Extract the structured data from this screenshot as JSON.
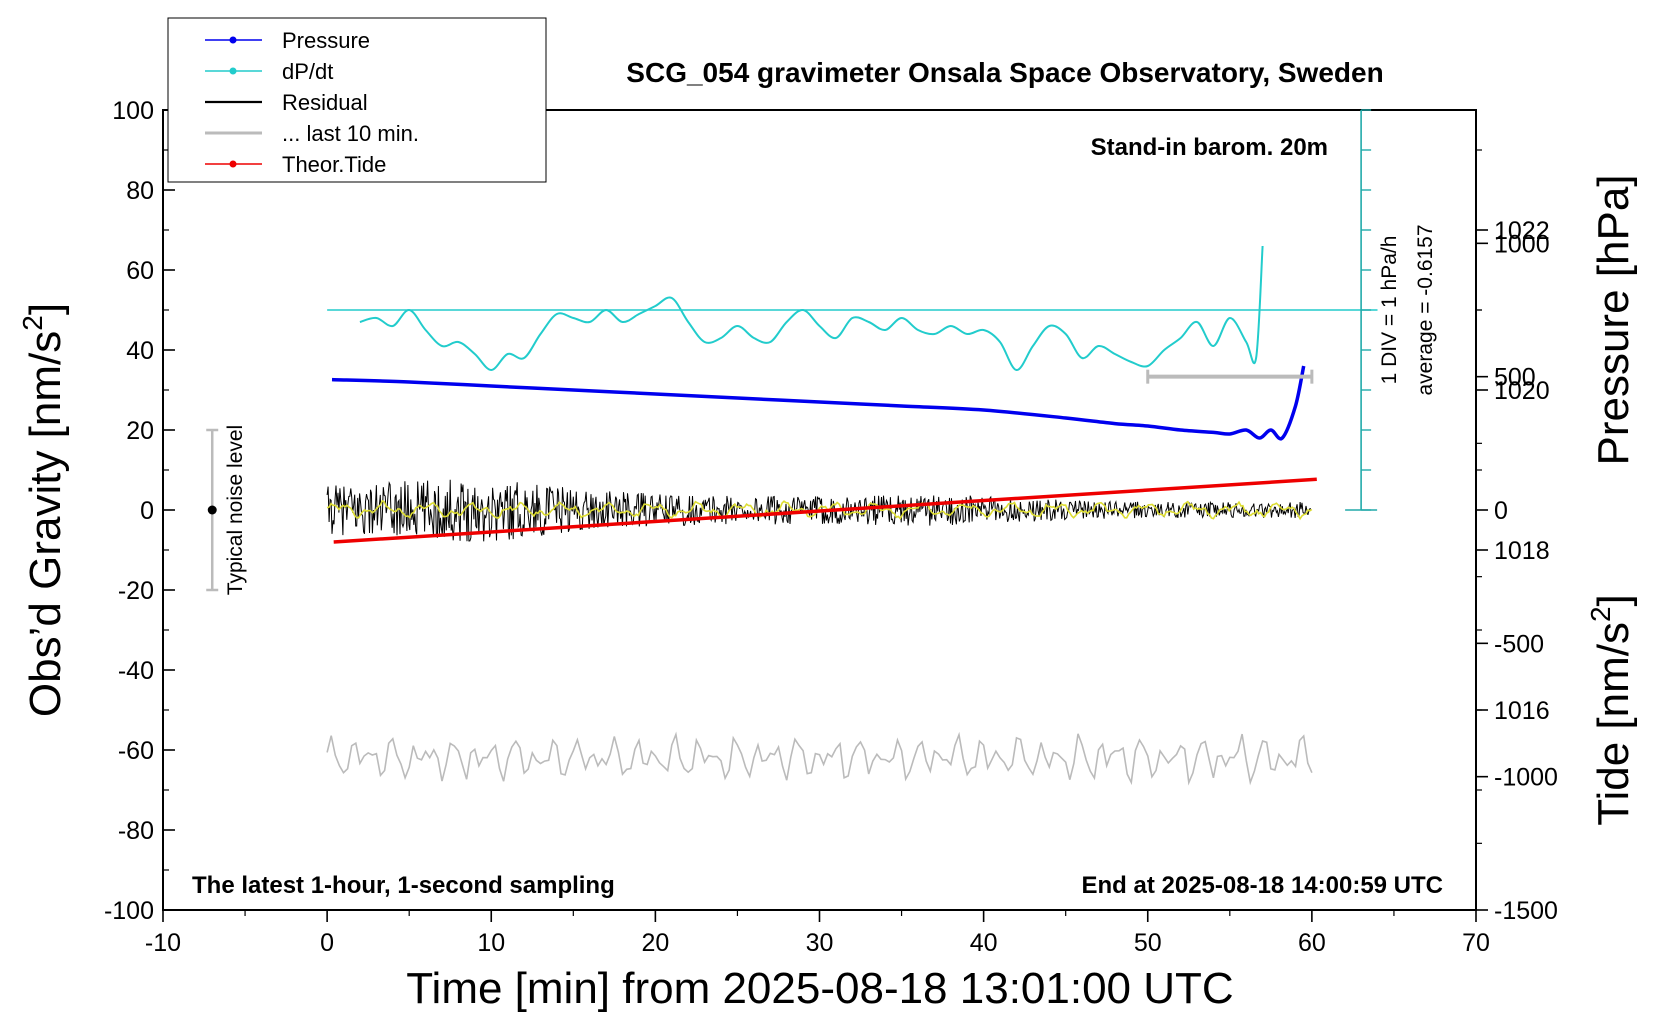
{
  "chart_data": {
    "type": "line",
    "title": "SCG_054 gravimeter Onsala Space Observatory, Sweden",
    "xlabel": "Time [min] from 2025-08-18 13:01:00 UTC",
    "ylabel_left": "Obs’d Gravity [nm/s",
    "ylabel_left_sup": "2",
    "ylabel_left_end": "]",
    "ylabel_right_pressure": "Pressure [hPa]",
    "ylabel_right_tide": "Tide [nm/s",
    "ylabel_right_tide_sup": "2",
    "ylabel_right_tide_end": "]",
    "xlim": [
      -10,
      70
    ],
    "ylim_left": [
      -100,
      100
    ],
    "x_ticks": [
      "-10",
      "0",
      "10",
      "20",
      "30",
      "40",
      "50",
      "60",
      "70"
    ],
    "y_ticks_left": [
      "100",
      "80",
      "60",
      "40",
      "20",
      "0",
      "-20",
      "-40",
      "-60",
      "-80",
      "-100"
    ],
    "pressure_axis": {
      "ylim": [
        1013.5,
        1023.5
      ],
      "ticks": [
        "1022",
        "1020",
        "1018",
        "1016"
      ]
    },
    "tide_axis": {
      "ylim": [
        -1500,
        1500
      ],
      "ticks": [
        "1000",
        "500",
        "0",
        "-500",
        "-1000",
        "-1500"
      ]
    },
    "legend": [
      {
        "label": "Pressure",
        "color": "#0000ee",
        "marker": true
      },
      {
        "label": "dP/dt",
        "color": "#22cccc",
        "marker": true
      },
      {
        "label": "Residual",
        "color": "#000000",
        "marker": false
      },
      {
        "label": "... last 10 min.",
        "color": "#bbbbbb",
        "marker": false
      },
      {
        "label": "Theor.Tide",
        "color": "#ee0000",
        "marker": true
      }
    ],
    "annotations": {
      "baro": "Stand-in barom. 20m",
      "latest": "The latest 1-hour, 1-second sampling",
      "end": "End at 2025-08-18 14:00:59 UTC",
      "div": "1 DIV = 1 hPa/h",
      "average": "average = -0.6157",
      "noise": "Typical noise level"
    },
    "noise_bar": {
      "x": -7,
      "center": 0,
      "half_range": 20
    },
    "ten_min_bar": {
      "x_start": 50,
      "x_end": 60,
      "tide_level": 500
    },
    "dpdt_scale": {
      "x": 63,
      "zero_y": 0,
      "top_y": 100,
      "div_nm": 10
    },
    "dpdt_average_line": {
      "y": 50,
      "x_start": 0,
      "x_end": 64
    },
    "series": [
      {
        "name": "Pressure",
        "color": "#0000ee",
        "axis": "pressure",
        "x": [
          0.3,
          5,
          10,
          15,
          20,
          25,
          30,
          35,
          40,
          45,
          48,
          50,
          52,
          54,
          55,
          56,
          56.8,
          57.5,
          58.2,
          59.0,
          59.5
        ],
        "y": [
          1020.13,
          1020.1,
          1020.05,
          1020.0,
          1019.95,
          1019.9,
          1019.85,
          1019.8,
          1019.75,
          1019.65,
          1019.58,
          1019.55,
          1019.5,
          1019.47,
          1019.45,
          1019.5,
          1019.4,
          1019.5,
          1019.4,
          1019.8,
          1020.3
        ]
      },
      {
        "name": "dP/dt",
        "color": "#22cccc",
        "axis": "left",
        "x": [
          2,
          3,
          4,
          5,
          6,
          7,
          8,
          9,
          10,
          11,
          12,
          13,
          14,
          15,
          16,
          17,
          18,
          19,
          20,
          21,
          22,
          23,
          24,
          25,
          26,
          27,
          28,
          29,
          30,
          31,
          32,
          33,
          34,
          35,
          36,
          37,
          38,
          39,
          40,
          41,
          42,
          43,
          44,
          45,
          46,
          47,
          48,
          49,
          50,
          51,
          52,
          53,
          54,
          55,
          56,
          56.6,
          57.0
        ],
        "y": [
          47,
          48,
          46,
          50,
          45,
          41,
          42,
          39,
          35,
          39,
          38,
          44,
          49,
          48,
          47,
          50,
          47,
          49,
          51,
          53,
          47,
          42,
          43,
          46,
          43,
          42,
          47,
          50,
          46,
          43,
          48,
          47,
          45,
          48,
          45,
          44,
          46,
          44,
          45,
          42,
          35,
          41,
          46,
          44,
          38,
          41,
          39,
          37,
          36,
          40,
          43,
          47,
          41,
          48,
          42,
          38,
          66
        ]
      },
      {
        "name": "Residual",
        "color": "#000000",
        "axis": "left",
        "x_range": [
          0,
          60
        ],
        "envelope": {
          "x": [
            0,
            5,
            10,
            15,
            20,
            30,
            37,
            45,
            50,
            60
          ],
          "amp": [
            6,
            7.5,
            8,
            5.5,
            4,
            3.5,
            4,
            2.5,
            2,
            2
          ]
        }
      },
      {
        "name": "Residual (smoothed)",
        "color": "#dddd33",
        "axis": "left",
        "x_range": [
          0,
          60
        ],
        "amp": 1.2
      },
      {
        "name": "... last 10 min.",
        "color": "#bbbbbb",
        "axis": "left",
        "x_range": [
          0,
          60
        ],
        "center": -62,
        "amp": 3
      },
      {
        "name": "Theor.Tide",
        "color": "#ee0000",
        "axis": "tide",
        "x": [
          0.4,
          60.3
        ],
        "y": [
          -120,
          115
        ]
      }
    ]
  }
}
